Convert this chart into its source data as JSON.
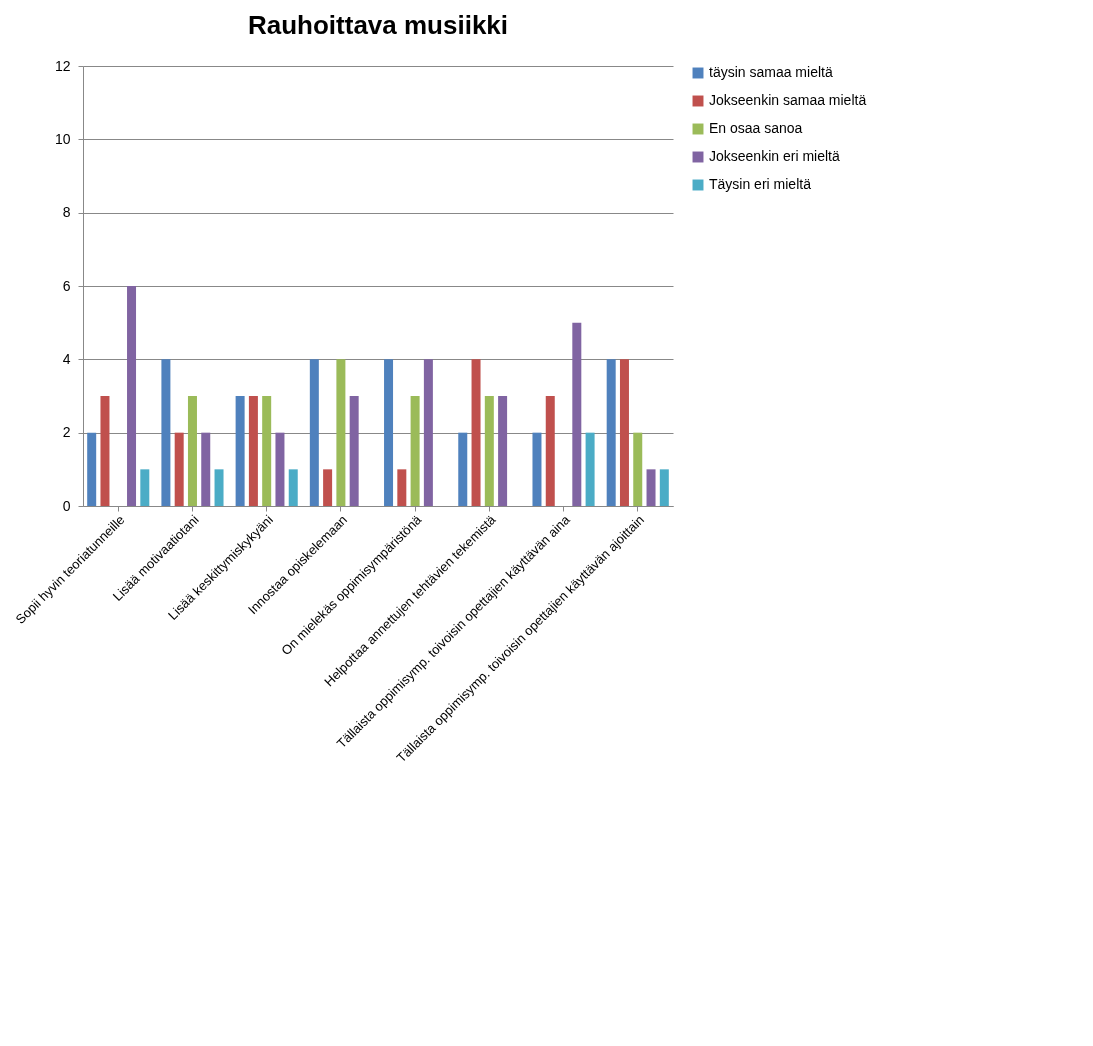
{
  "chart_data": {
    "type": "bar",
    "title": "Rauhoittava musiikki",
    "categories": [
      "Sopii hyvin teoriatunneille",
      "Lisää motivaatiotani",
      "Lisää keskittymiskykyäni",
      "Innostaa opiskelemaan",
      "On mielekäs oppimisympäristönä",
      "Helpottaa annettujen tehtävien tekemistä",
      "Tällaista  oppimisymp. toivoisin opettajien käyttävän aina",
      "Tällaista oppimisymp. toivoisin opettajien käyttävän ajoittain"
    ],
    "series": [
      {
        "name": "täysin samaa mieltä",
        "color": "#4f81bd",
        "values": [
          2,
          4,
          3,
          4,
          4,
          2,
          2,
          4
        ]
      },
      {
        "name": "Jokseenkin samaa mieltä",
        "color": "#c0504d",
        "values": [
          3,
          2,
          3,
          1,
          1,
          4,
          3,
          4
        ]
      },
      {
        "name": "En osaa sanoa",
        "color": "#9bbb59",
        "values": [
          0,
          3,
          3,
          4,
          3,
          3,
          0,
          2
        ]
      },
      {
        "name": "Jokseenkin eri mieltä",
        "color": "#8064a2",
        "values": [
          6,
          2,
          2,
          3,
          4,
          3,
          5,
          1
        ]
      },
      {
        "name": "Täysin eri mieltä",
        "color": "#4bacc6",
        "values": [
          1,
          1,
          1,
          0,
          0,
          0,
          2,
          1
        ]
      }
    ],
    "ylim": [
      0,
      12
    ],
    "yticks": [
      0,
      2,
      4,
      6,
      8,
      10,
      12
    ],
    "grid": "y",
    "legend": "right"
  }
}
